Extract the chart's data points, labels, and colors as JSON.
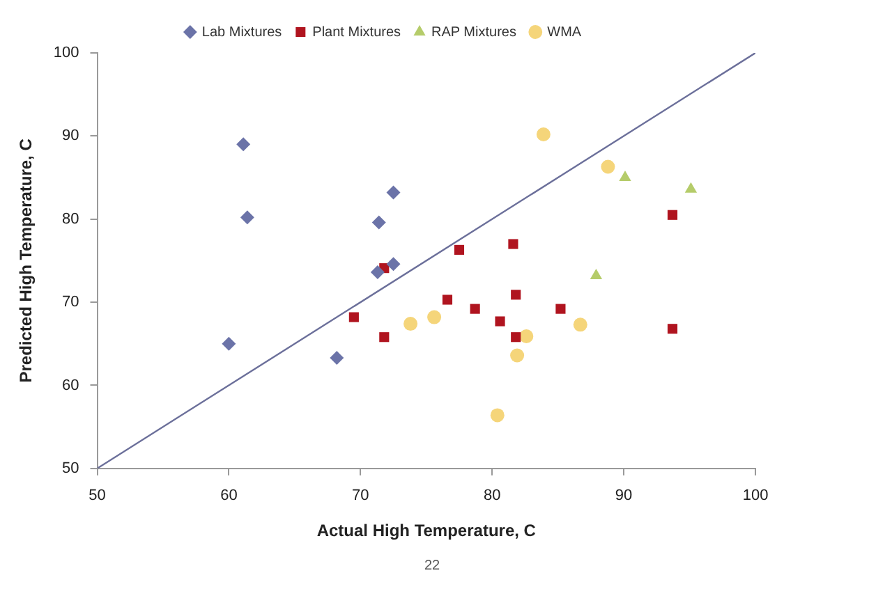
{
  "chart_data": {
    "type": "scatter",
    "xlabel": "Actual High Temperature, C",
    "ylabel": "Predicted High Temperature, C",
    "xlim": [
      50,
      100
    ],
    "xticks": [
      50,
      60,
      70,
      80,
      90,
      100
    ],
    "ylim": [
      50,
      100
    ],
    "yticks": [
      50,
      60,
      70,
      80,
      90,
      100
    ],
    "grid": false,
    "legend": "top",
    "annotations": [
      "22"
    ],
    "series": [
      {
        "name": "Lab Mixtures",
        "color": "#6b73a8",
        "marker": "diamond",
        "x": [
          61.1,
          61.4,
          72.5,
          71.4,
          72.5,
          71.3,
          60.0,
          68.2
        ],
        "values": [
          89.0,
          80.2,
          83.2,
          79.6,
          74.6,
          73.6,
          65.0,
          63.3
        ]
      },
      {
        "name": "Plant Mixtures",
        "color": "#b0141f",
        "marker": "square",
        "x": [
          71.8,
          77.5,
          81.6,
          93.7,
          76.6,
          81.8,
          78.7,
          85.2,
          80.6,
          81.8,
          71.8,
          93.7,
          69.5
        ],
        "values": [
          74.1,
          76.3,
          77.0,
          80.5,
          70.3,
          70.9,
          69.2,
          69.2,
          67.7,
          65.8,
          65.8,
          66.8,
          68.2
        ]
      },
      {
        "name": "RAP Mixtures",
        "color": "#b5cc6a",
        "marker": "triangle",
        "x": [
          90.1,
          95.1,
          87.9
        ],
        "values": [
          85.0,
          83.6,
          73.2
        ]
      },
      {
        "name": "WMA",
        "color": "#f5d57a",
        "marker": "circle",
        "x": [
          83.9,
          88.8,
          73.8,
          75.6,
          82.6,
          86.7,
          81.9,
          80.4
        ],
        "values": [
          90.2,
          86.3,
          67.4,
          68.2,
          65.9,
          67.3,
          63.6,
          56.4
        ]
      },
      {
        "type": "line",
        "color": "#6b6f9a",
        "marker": "none",
        "x": [
          50,
          100
        ],
        "values": [
          50,
          100
        ]
      }
    ]
  }
}
